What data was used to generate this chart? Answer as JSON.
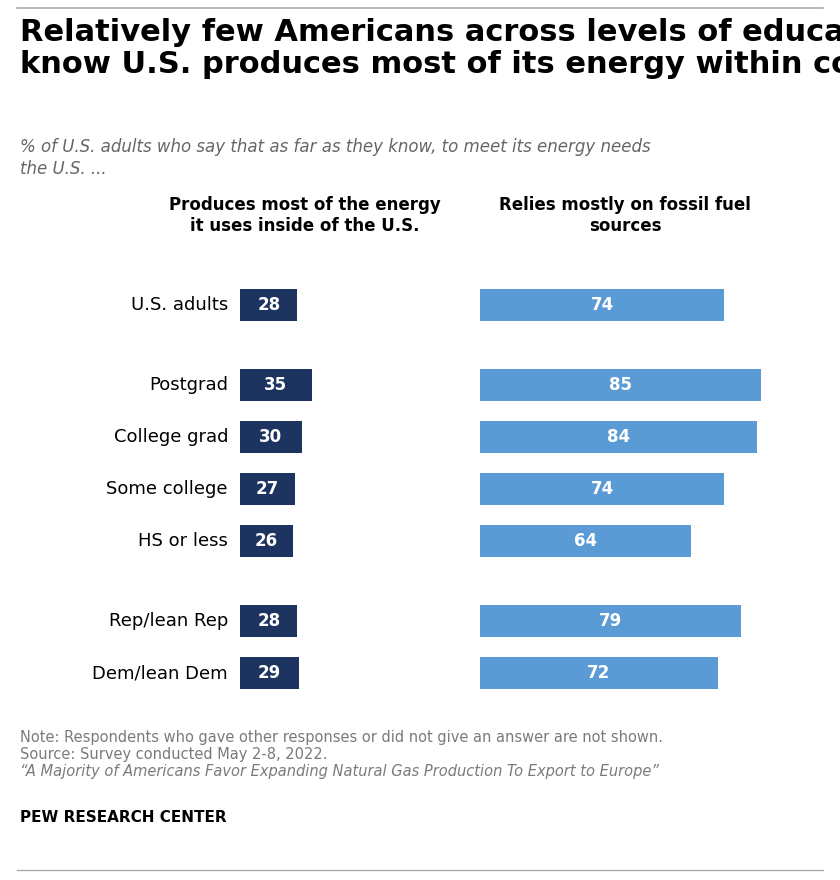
{
  "title": "Relatively few Americans across levels of education\nknow U.S. produces most of its energy within country",
  "subtitle": "% of U.S. adults who say that as far as they know, to meet its energy needs\nthe U.S. ...",
  "col1_header": "Produces most of the energy\nit uses inside of the U.S.",
  "col2_header": "Relies mostly on fossil fuel\nsources",
  "row_data": [
    {
      "label": "U.S. adults",
      "v1": 28,
      "v2": 74,
      "gap_before": false
    },
    {
      "label": null,
      "v1": null,
      "v2": null,
      "gap_before": false
    },
    {
      "label": "Postgrad",
      "v1": 35,
      "v2": 85,
      "gap_before": false
    },
    {
      "label": "College grad",
      "v1": 30,
      "v2": 84,
      "gap_before": false
    },
    {
      "label": "Some college",
      "v1": 27,
      "v2": 74,
      "gap_before": false
    },
    {
      "label": "HS or less",
      "v1": 26,
      "v2": 64,
      "gap_before": false
    },
    {
      "label": null,
      "v1": null,
      "v2": null,
      "gap_before": false
    },
    {
      "label": "Rep/lean Rep",
      "v1": 28,
      "v2": 79,
      "gap_before": false
    },
    {
      "label": "Dem/lean Dem",
      "v1": 29,
      "v2": 72,
      "gap_before": false
    }
  ],
  "col1_color": "#1d3461",
  "col2_color": "#5b9bd5",
  "note_lines": [
    "Note: Respondents who gave other responses or did not give an answer are not shown.",
    "Source: Survey conducted May 2-8, 2022.",
    "“A Majority of Americans Favor Expanding Natural Gas Production To Export to Europe”"
  ],
  "source_label": "PEW RESEARCH CENTER",
  "bg_color": "#ffffff",
  "title_fontsize": 22,
  "subtitle_fontsize": 12,
  "header_fontsize": 12,
  "label_fontsize": 13,
  "bar_num_fontsize": 12,
  "note_fontsize": 10.5,
  "top_line_color": "#aaaaaa"
}
